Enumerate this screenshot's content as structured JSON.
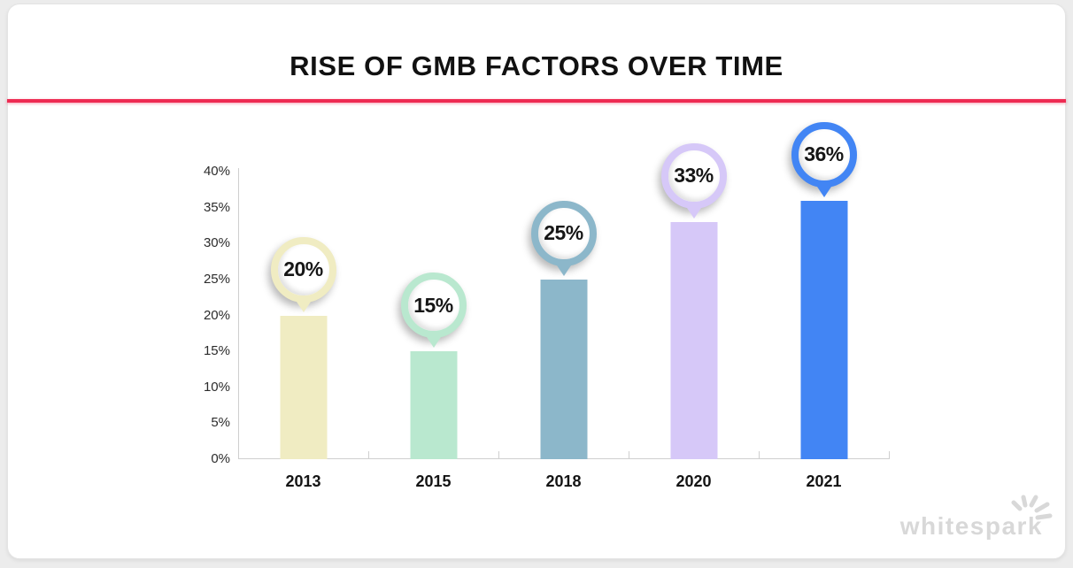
{
  "page": {
    "background_color": "#ececec"
  },
  "card": {
    "background_color": "#ffffff",
    "border_color": "#e4e4e4"
  },
  "header": {
    "title": "RISE OF GMB FACTORS OVER TIME",
    "title_color": "#111111",
    "divider_color": "#ee2b52"
  },
  "chart_data": {
    "type": "bar",
    "title": "RISE OF GMB FACTORS OVER TIME",
    "categories": [
      "2013",
      "2015",
      "2018",
      "2020",
      "2021"
    ],
    "values": [
      20,
      15,
      25,
      33,
      36
    ],
    "value_labels": [
      "20%",
      "15%",
      "25%",
      "33%",
      "36%"
    ],
    "unit": "%",
    "xlabel": "",
    "ylabel": "",
    "ylim": [
      0,
      40
    ],
    "yticks": [
      0,
      5,
      10,
      15,
      20,
      25,
      30,
      35,
      40
    ],
    "ytick_labels": [
      "0%",
      "5%",
      "10%",
      "15%",
      "20%",
      "25%",
      "30%",
      "35%",
      "40%"
    ],
    "bar_colors": [
      "#f0ecc2",
      "#b9e8cf",
      "#8cb7ca",
      "#d6c8f8",
      "#4285f4"
    ],
    "axis_color": "#cfcfcf",
    "badge_text_color": "#161616",
    "grid": false,
    "legend": false
  },
  "logo": {
    "text": "whitespark",
    "color": "#d8d8d8",
    "icon": "spark-burst-icon"
  }
}
